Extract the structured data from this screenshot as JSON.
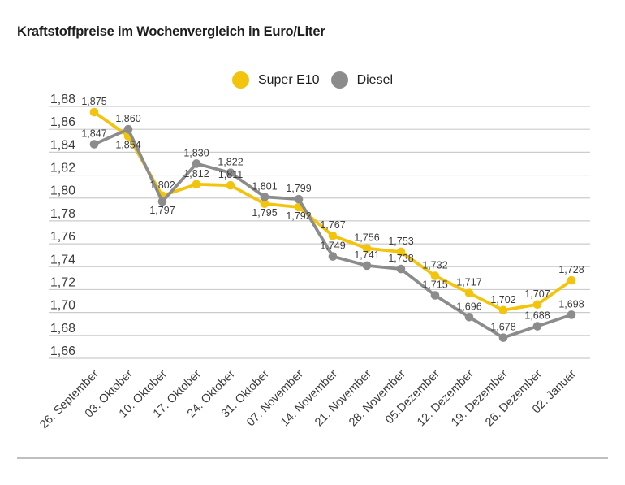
{
  "title": "Kraftstoffpreise im Wochenvergleich in Euro/Liter",
  "colors": {
    "background": "#ffffff",
    "title_text": "#1d1d1b",
    "axis_text": "#3c3c3c",
    "gridline": "#cccccc",
    "divider": "#bfbfbf",
    "super_e10": "#f2c40e",
    "diesel": "#8c8c8c"
  },
  "chart_data": {
    "type": "line",
    "title": "Kraftstoffpreise im Wochenvergleich in Euro/Liter",
    "categories": [
      "26. September",
      "03. Oktober",
      "10. Oktober",
      "17. Oktober",
      "24. Oktober",
      "31. Oktober",
      "07. November",
      "14. November",
      "21. November",
      "28. November",
      "05.Dezember",
      "12. Dezember",
      "19. Dezember",
      "26. Dezember",
      "02. Januar"
    ],
    "series": [
      {
        "name": "Super E10",
        "color": "#f2c40e",
        "values": [
          1.875,
          1.854,
          1.802,
          1.812,
          1.811,
          1.795,
          1.792,
          1.767,
          1.756,
          1.753,
          1.732,
          1.717,
          1.702,
          1.707,
          1.728
        ],
        "value_labels": [
          "1,875",
          "1,854",
          "1,802",
          "1,812",
          "1,811",
          "1,795",
          "1,792",
          "1,767",
          "1,756",
          "1,753",
          "1,732",
          "1,717",
          "1,702",
          "1,707",
          "1,728"
        ],
        "label_positions": [
          "above",
          "below",
          "above",
          "above",
          "above",
          "below",
          "below",
          "above",
          "above",
          "above",
          "above",
          "above",
          "above",
          "above",
          "above"
        ]
      },
      {
        "name": "Diesel",
        "color": "#8c8c8c",
        "values": [
          1.847,
          1.86,
          1.797,
          1.83,
          1.822,
          1.801,
          1.799,
          1.749,
          1.741,
          1.738,
          1.715,
          1.696,
          1.678,
          1.688,
          1.698
        ],
        "value_labels": [
          "1,847",
          "1,860",
          "1,797",
          "1,830",
          "1,822",
          "1,801",
          "1,799",
          "1,749",
          "1,741",
          "1,738",
          "1,715",
          "1,696",
          "1,678",
          "1,688",
          "1,698"
        ],
        "label_positions": [
          "above",
          "above",
          "below",
          "above",
          "above",
          "above",
          "above",
          "above",
          "above",
          "above",
          "above",
          "above",
          "above",
          "above",
          "above"
        ]
      }
    ],
    "ylim": [
      1.66,
      1.88
    ],
    "ytick_step": 0.02,
    "yticks": [
      "1,88",
      "1,86",
      "1,84",
      "1,82",
      "1,80",
      "1,78",
      "1,76",
      "1,74",
      "1,72",
      "1,70",
      "1,68",
      "1,66"
    ],
    "grid": true,
    "legend_position": "top-center",
    "decimal_separator": ","
  }
}
